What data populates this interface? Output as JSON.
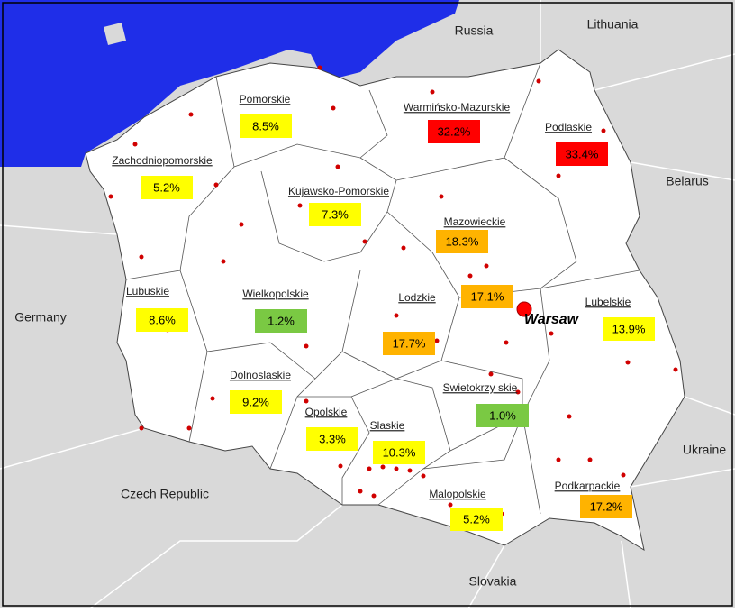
{
  "countries": [
    "Russia",
    "Lithuania",
    "Belarus",
    "Germany",
    "Ukraine",
    "Czech Republic",
    "Slovakia"
  ],
  "regions": [
    {
      "name": "Pomorskie",
      "value": "8.5%",
      "color": "#ffff00"
    },
    {
      "name": "Zachodniopomorskie",
      "value": "5.2%",
      "color": "#ffff00"
    },
    {
      "name": "Warmińsko-Mazurskie",
      "value": "32.2%",
      "color": "#ff0000"
    },
    {
      "name": "Podlaskie",
      "value": "33.4%",
      "color": "#ff0000"
    },
    {
      "name": "Kujawsko-Pomorskie",
      "value": "7.3%",
      "color": "#ffff00"
    },
    {
      "name": "Mazowieckie",
      "value": "18.3%",
      "color": "#ffb300"
    },
    {
      "name": "Lubuskie",
      "value": "8.6%",
      "color": "#ffff00"
    },
    {
      "name": "Wielkopolskie",
      "value": "1.2%",
      "color": "#7ac943"
    },
    {
      "name": "Lodzkie",
      "value": "17.7%",
      "color": "#ffb300"
    },
    {
      "name": "Lubelskie",
      "value": "13.9%",
      "color": "#ffff00"
    },
    {
      "name": "Dolnoslaskie",
      "value": "9.2%",
      "color": "#ffff00"
    },
    {
      "name": "Swietokrzy skie",
      "value": "1.0%",
      "color": "#7ac943"
    },
    {
      "name": "Opolskie",
      "value": "3.3%",
      "color": "#ffff00"
    },
    {
      "name": "Slaskie",
      "value": "10.3%",
      "color": "#ffff00"
    },
    {
      "name": "Malopolskie",
      "value": "5.2%",
      "color": "#ffff00"
    },
    {
      "name": "Podkarpackie",
      "value": "17.2%",
      "color": "#ffb300"
    }
  ],
  "capital": {
    "name": "Warsaw",
    "value": "17.1%",
    "color": "#ffb300"
  }
}
